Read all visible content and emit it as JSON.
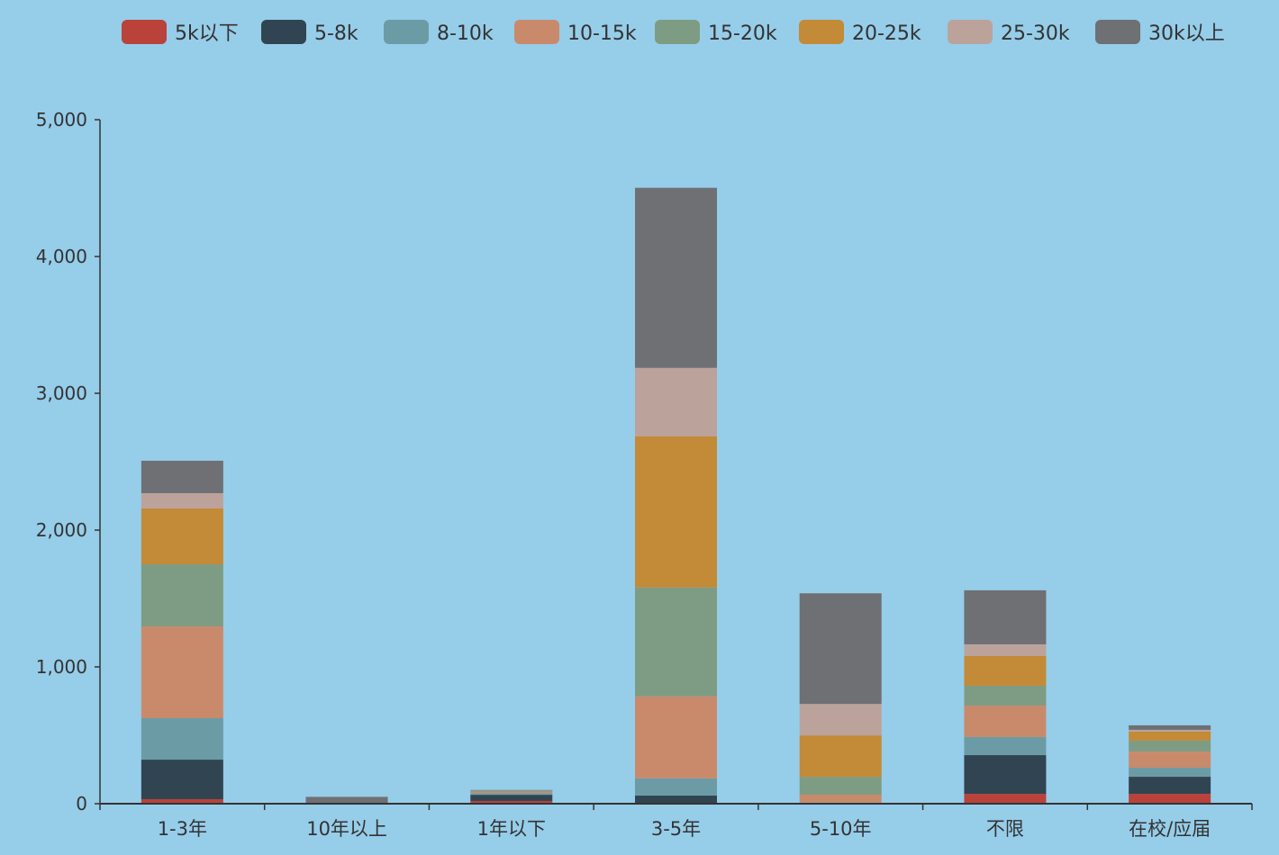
{
  "chart_data": {
    "type": "bar",
    "stacked": true,
    "title": "",
    "xlabel": "",
    "ylabel": "",
    "ylim": [
      0,
      5000
    ],
    "yticks": [
      0,
      1000,
      2000,
      3000,
      4000,
      5000
    ],
    "ytick_labels": [
      "0",
      "1,000",
      "2,000",
      "3,000",
      "4,000",
      "5,000"
    ],
    "grid": false,
    "legend_position": "top",
    "background": "#96cde9",
    "categories": [
      "1-3年",
      "10年以上",
      "1年以下",
      "3-5年",
      "5-10年",
      "不限",
      "在校/应届"
    ],
    "series": [
      {
        "name": "5k以下",
        "color": "#b9423a",
        "values": [
          33,
          1,
          20,
          3,
          1,
          72,
          72
        ]
      },
      {
        "name": "5-8k",
        "color": "#314452",
        "values": [
          289,
          1,
          45,
          57,
          2,
          283,
          125
        ]
      },
      {
        "name": "8-10k",
        "color": "#6b9ca5",
        "values": [
          303,
          0,
          12,
          125,
          5,
          132,
          66
        ]
      },
      {
        "name": "10-15k",
        "color": "#c98a6c",
        "values": [
          671,
          0,
          10,
          600,
          58,
          230,
          118
        ]
      },
      {
        "name": "15-20k",
        "color": "#7e9c83",
        "values": [
          454,
          0,
          8,
          796,
          130,
          145,
          80
        ]
      },
      {
        "name": "20-25k",
        "color": "#c38a37",
        "values": [
          408,
          0,
          2,
          1105,
          303,
          217,
          66
        ]
      },
      {
        "name": "25-30k",
        "color": "#bba39b",
        "values": [
          112,
          3,
          1,
          500,
          230,
          86,
          13
        ]
      },
      {
        "name": "30k以上",
        "color": "#6e7074",
        "values": [
          237,
          45,
          2,
          1316,
          809,
          395,
          33
        ]
      }
    ]
  }
}
